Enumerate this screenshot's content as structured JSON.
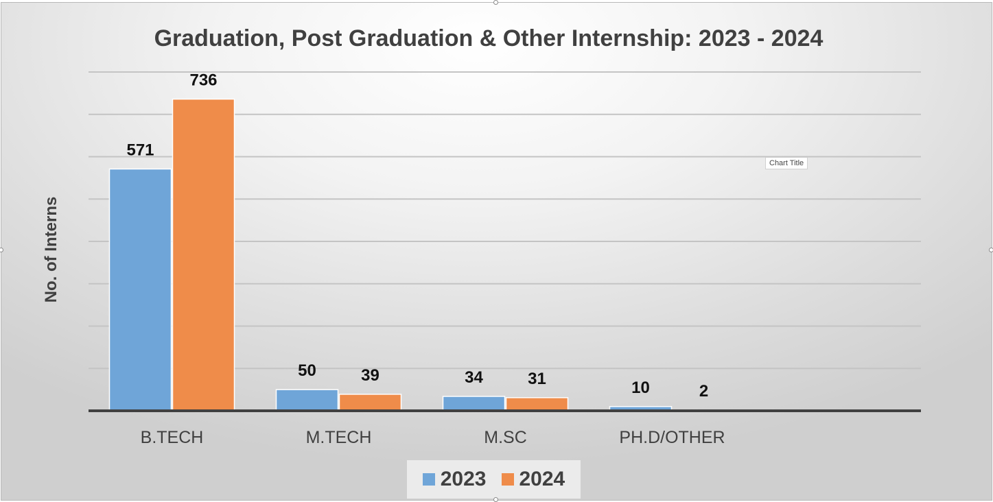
{
  "chart_data": {
    "type": "bar",
    "title": "Graduation, Post Graduation & Other Internship: 2023 - 2024",
    "xlabel": "",
    "ylabel": "No. of Interns",
    "categories": [
      "B.TECH",
      "M.TECH",
      "M.SC",
      "PH.D/OTHER"
    ],
    "series": [
      {
        "name": "2023",
        "color": "#6fa5d8",
        "values": [
          571,
          50,
          34,
          10
        ]
      },
      {
        "name": "2024",
        "color": "#ef8c4a",
        "values": [
          736,
          39,
          31,
          2
        ]
      }
    ],
    "ylim": [
      0,
      800
    ],
    "grid": true,
    "legend": "bottom",
    "annotation": "Chart Title"
  }
}
